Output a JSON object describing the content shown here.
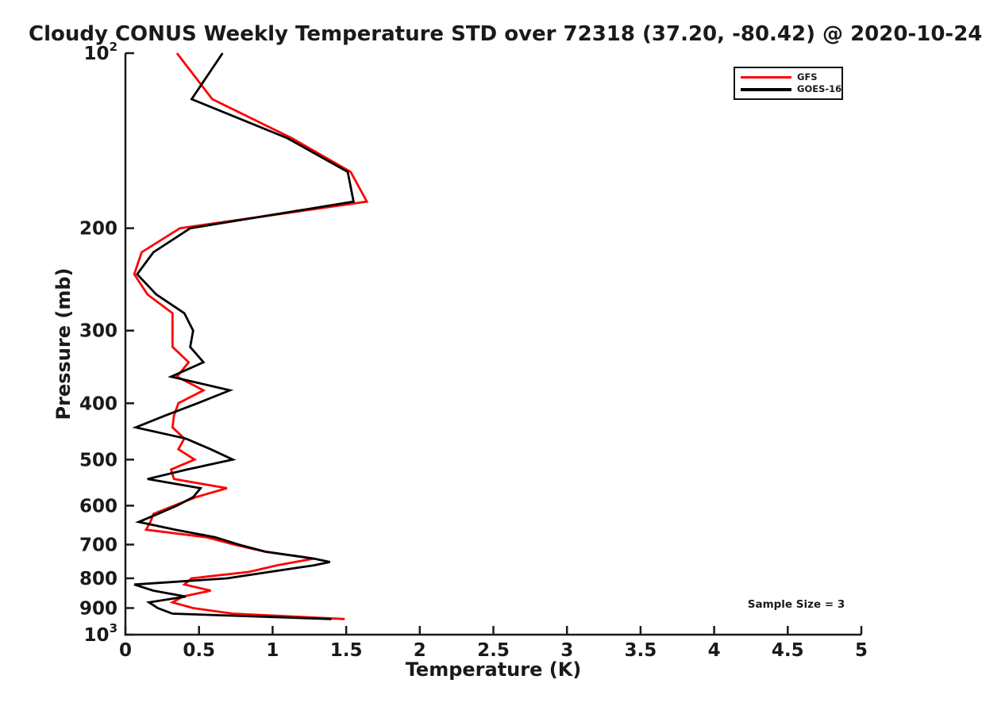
{
  "title": "Cloudy CONUS Weekly Temperature STD over 72318 (37.20, -80.42) @ 2020-10-24",
  "annotation": {
    "sample_size_label": "Sample Size = 3"
  },
  "legend": {
    "items": [
      {
        "label": "GFS",
        "color": "#ff0000"
      },
      {
        "label": "GOES-16",
        "color": "#000000"
      }
    ]
  },
  "chart_data": {
    "type": "line",
    "title": "Cloudy CONUS Weekly Temperature STD over 72318 (37.20, -80.42) @ 2020-10-24",
    "xlabel": "Temperature (K)",
    "ylabel": "Pressure (mb)",
    "xlim": [
      0,
      5
    ],
    "y_scale": "log10-inverted",
    "ylim_mb": [
      100,
      1000
    ],
    "grid": false,
    "legend_position": "top-right",
    "x_ticks": [
      {
        "value": 0,
        "label": "0"
      },
      {
        "value": 0.5,
        "label": "0.5"
      },
      {
        "value": 1,
        "label": "1"
      },
      {
        "value": 1.5,
        "label": "1.5"
      },
      {
        "value": 2,
        "label": "2"
      },
      {
        "value": 2.5,
        "label": "2.5"
      },
      {
        "value": 3,
        "label": "3"
      },
      {
        "value": 3.5,
        "label": "3.5"
      },
      {
        "value": 4,
        "label": "4"
      },
      {
        "value": 4.5,
        "label": "4.5"
      },
      {
        "value": 5,
        "label": "5"
      }
    ],
    "y_ticks": [
      {
        "value": 100,
        "label": "10",
        "exponent": "2"
      },
      {
        "value": 200,
        "label": "200"
      },
      {
        "value": 300,
        "label": "300"
      },
      {
        "value": 400,
        "label": "400"
      },
      {
        "value": 500,
        "label": "500"
      },
      {
        "value": 600,
        "label": "600"
      },
      {
        "value": 700,
        "label": "700"
      },
      {
        "value": 800,
        "label": "800"
      },
      {
        "value": 900,
        "label": "900"
      },
      {
        "value": 1000,
        "label": "10",
        "exponent": "3"
      }
    ],
    "series": [
      {
        "name": "GFS",
        "color": "#ff0000",
        "points_mb_K": [
          [
            100,
            0.35
          ],
          [
            120,
            0.59
          ],
          [
            140,
            1.13
          ],
          [
            160,
            1.53
          ],
          [
            180,
            1.64
          ],
          [
            200,
            0.37
          ],
          [
            220,
            0.11
          ],
          [
            240,
            0.06
          ],
          [
            260,
            0.15
          ],
          [
            280,
            0.32
          ],
          [
            300,
            0.32
          ],
          [
            320,
            0.32
          ],
          [
            340,
            0.43
          ],
          [
            360,
            0.35
          ],
          [
            380,
            0.53
          ],
          [
            400,
            0.36
          ],
          [
            420,
            0.33
          ],
          [
            440,
            0.32
          ],
          [
            460,
            0.4
          ],
          [
            480,
            0.36
          ],
          [
            500,
            0.47
          ],
          [
            520,
            0.31
          ],
          [
            540,
            0.33
          ],
          [
            560,
            0.69
          ],
          [
            580,
            0.48
          ],
          [
            600,
            0.33
          ],
          [
            620,
            0.19
          ],
          [
            640,
            0.17
          ],
          [
            660,
            0.14
          ],
          [
            680,
            0.55
          ],
          [
            700,
            0.74
          ],
          [
            720,
            0.95
          ],
          [
            740,
            1.28
          ],
          [
            760,
            1.03
          ],
          [
            780,
            0.84
          ],
          [
            800,
            0.45
          ],
          [
            820,
            0.4
          ],
          [
            840,
            0.58
          ],
          [
            860,
            0.39
          ],
          [
            880,
            0.32
          ],
          [
            900,
            0.46
          ],
          [
            920,
            0.73
          ],
          [
            940,
            1.49
          ]
        ]
      },
      {
        "name": "GOES-16",
        "color": "#000000",
        "points_mb_K": [
          [
            100,
            0.66
          ],
          [
            120,
            0.45
          ],
          [
            140,
            1.1
          ],
          [
            160,
            1.51
          ],
          [
            180,
            1.55
          ],
          [
            200,
            0.44
          ],
          [
            220,
            0.19
          ],
          [
            240,
            0.08
          ],
          [
            260,
            0.21
          ],
          [
            280,
            0.4
          ],
          [
            300,
            0.46
          ],
          [
            320,
            0.44
          ],
          [
            340,
            0.53
          ],
          [
            360,
            0.31
          ],
          [
            380,
            0.71
          ],
          [
            400,
            0.49
          ],
          [
            420,
            0.27
          ],
          [
            440,
            0.07
          ],
          [
            460,
            0.41
          ],
          [
            480,
            0.58
          ],
          [
            500,
            0.73
          ],
          [
            520,
            0.42
          ],
          [
            540,
            0.15
          ],
          [
            560,
            0.51
          ],
          [
            580,
            0.46
          ],
          [
            600,
            0.35
          ],
          [
            620,
            0.22
          ],
          [
            640,
            0.09
          ],
          [
            660,
            0.34
          ],
          [
            680,
            0.61
          ],
          [
            700,
            0.77
          ],
          [
            720,
            0.95
          ],
          [
            740,
            1.28
          ],
          [
            750,
            1.39
          ],
          [
            760,
            1.28
          ],
          [
            780,
            0.98
          ],
          [
            800,
            0.69
          ],
          [
            820,
            0.06
          ],
          [
            840,
            0.19
          ],
          [
            860,
            0.41
          ],
          [
            880,
            0.16
          ],
          [
            900,
            0.22
          ],
          [
            920,
            0.32
          ],
          [
            940,
            1.4
          ]
        ]
      }
    ]
  }
}
